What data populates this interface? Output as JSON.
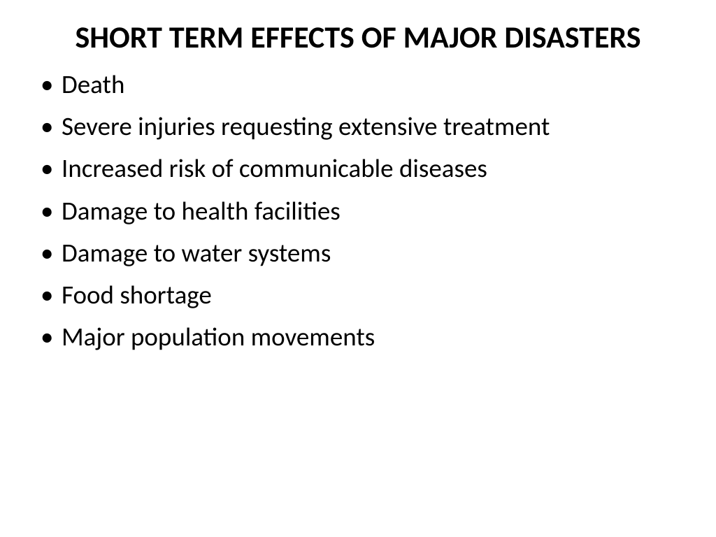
{
  "slide": {
    "title": "SHORT TERM EFFECTS OF MAJOR DISASTERS",
    "title_fontsize": 44,
    "title_fontweight": 700,
    "title_color": "#000000",
    "body_fontsize": 37,
    "body_color": "#000000",
    "background_color": "#ffffff",
    "bullets": [
      "Death",
      "Severe injuries requesting extensive treatment",
      "Increased risk of communicable diseases",
      "Damage to health facilities",
      "Damage to water systems",
      "Food shortage",
      "Major population movements"
    ]
  }
}
